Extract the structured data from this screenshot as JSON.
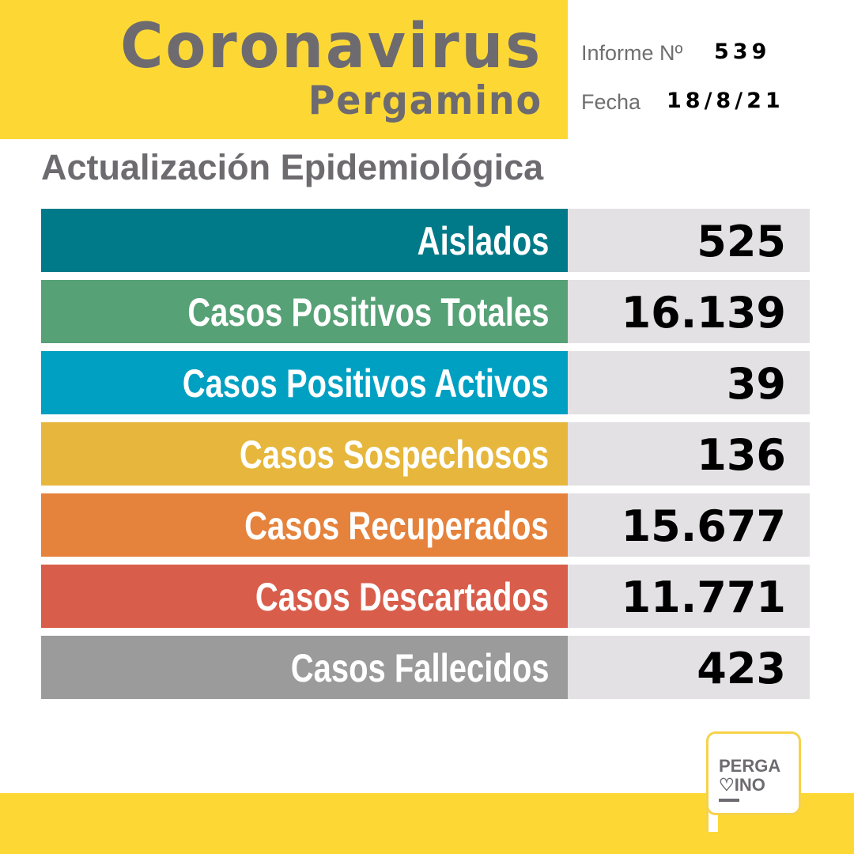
{
  "header": {
    "title": "Coronavirus",
    "subtitle": "Pergamino",
    "informe_label": "Informe Nº",
    "informe_value": "539",
    "fecha_label": "Fecha",
    "fecha_value": "18/8/21"
  },
  "section_title": "Actualización Epidemiológica",
  "stats": [
    {
      "label": "Aislados",
      "value": "525",
      "color": "#007a89"
    },
    {
      "label": "Casos Positivos Totales",
      "value": "16.139",
      "color": "#56a176"
    },
    {
      "label": "Casos Positivos Activos",
      "value": "39",
      "color": "#00a0c2"
    },
    {
      "label": "Casos Sospechosos",
      "value": "136",
      "color": "#e6b73c"
    },
    {
      "label": "Casos Recuperados",
      "value": "15.677",
      "color": "#e5823b"
    },
    {
      "label": "Casos Descartados",
      "value": "11.771",
      "color": "#d85d4b"
    },
    {
      "label": "Casos Fallecidos",
      "value": "423",
      "color": "#9b9b9b"
    }
  ],
  "logo": {
    "line1": "PERGA",
    "line2": "♡INO"
  }
}
